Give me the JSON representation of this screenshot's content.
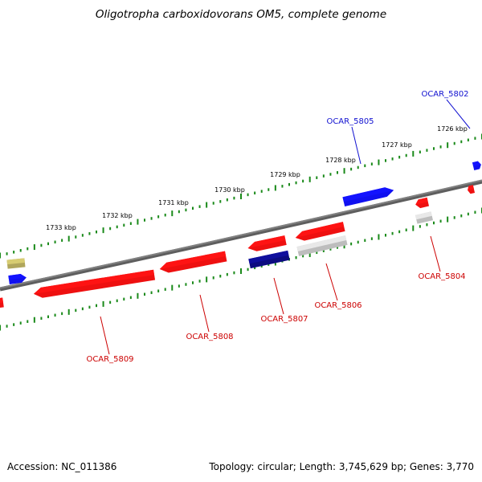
{
  "title": "Oligotropha carboxidovorans OM5, complete genome",
  "footer": {
    "accession": "Accession: NC_011386",
    "summary": "Topology: circular; Length: 3,745,629 bp; Genes: 3,770"
  },
  "colors": {
    "backbone": "#808080",
    "ticks": "#1a8a1a",
    "forward_gene": "#1010f0",
    "reverse_gene": "#ee1010",
    "rna_gene": "#0c0c80",
    "other_gene": "#bdbdbd",
    "olive_gene": "#b0a65c",
    "forward_label": "#1010d0",
    "reverse_label": "#cc0000"
  },
  "scale_labels": [
    "1726 kbp",
    "1727 kbp",
    "1728 kbp",
    "1729 kbp",
    "1730 kbp",
    "1731 kbp",
    "1732 kbp",
    "1733 kbp"
  ],
  "gene_labels": [
    {
      "id": "OCAR_5802",
      "strand": "forward"
    },
    {
      "id": "OCAR_5805",
      "strand": "forward"
    },
    {
      "id": "OCAR_5804",
      "strand": "reverse"
    },
    {
      "id": "OCAR_5806",
      "strand": "reverse"
    },
    {
      "id": "OCAR_5807",
      "strand": "reverse"
    },
    {
      "id": "OCAR_5808",
      "strand": "reverse"
    },
    {
      "id": "OCAR_5809",
      "strand": "reverse"
    }
  ]
}
